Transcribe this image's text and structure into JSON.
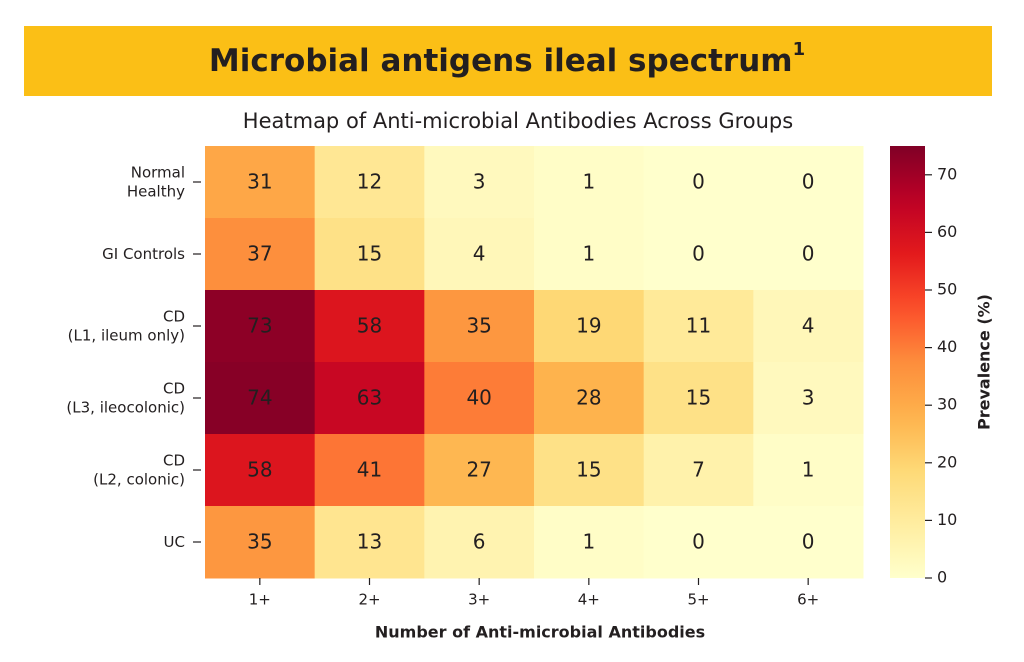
{
  "chart_data": {
    "type": "heatmap",
    "banner_title": "Microbial antigens ileal spectrum",
    "banner_superscript": "1",
    "title": "Heatmap of Anti-microbial Antibodies Across Groups",
    "x_label": "Number of Anti-microbial Antibodies",
    "colorbar_label": "Prevalence (%)",
    "categories": [
      "1+",
      "2+",
      "3+",
      "4+",
      "5+",
      "6+"
    ],
    "y_categories": [
      "Normal\nHealthy",
      "GI Controls",
      "CD\n(L1, ileum only)",
      "CD\n(L3, ileocolonic)",
      "CD\n(L2, colonic)",
      "UC"
    ],
    "values": [
      [
        31,
        12,
        3,
        1,
        0,
        0
      ],
      [
        37,
        15,
        4,
        1,
        0,
        0
      ],
      [
        73,
        58,
        35,
        19,
        11,
        4
      ],
      [
        74,
        63,
        40,
        28,
        15,
        3
      ],
      [
        58,
        41,
        27,
        15,
        7,
        1
      ],
      [
        35,
        13,
        6,
        1,
        0,
        0
      ]
    ],
    "colormap": "YlOrRd",
    "zlim": [
      0,
      75
    ],
    "zticks": [
      0,
      10,
      20,
      30,
      40,
      50,
      60,
      70
    ],
    "banner_color": "#fbbf16"
  }
}
